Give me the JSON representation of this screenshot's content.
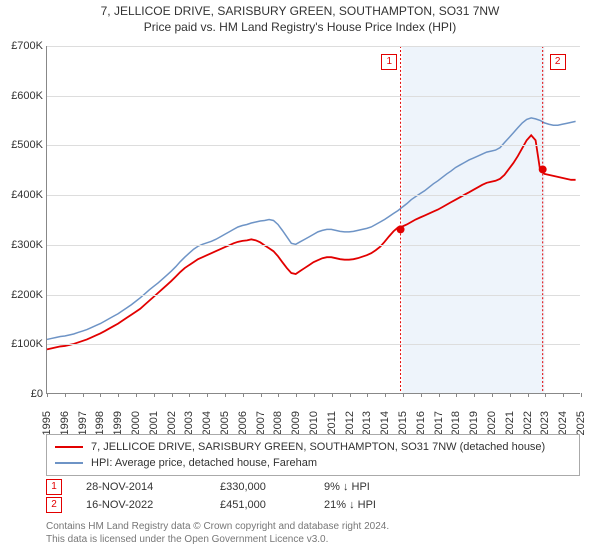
{
  "title_line1": "7, JELLICOE DRIVE, SARISBURY GREEN, SOUTHAMPTON, SO31 7NW",
  "title_line2": "Price paid vs. HM Land Registry's House Price Index (HPI)",
  "chart": {
    "type": "line",
    "background_color": "#ffffff",
    "grid_color": "#dddddd",
    "axis_color": "#888888",
    "years": [
      1995,
      1996,
      1997,
      1998,
      1999,
      2000,
      2001,
      2002,
      2003,
      2004,
      2005,
      2006,
      2007,
      2008,
      2009,
      2010,
      2011,
      2012,
      2013,
      2014,
      2015,
      2016,
      2017,
      2018,
      2019,
      2020,
      2021,
      2022,
      2023,
      2024,
      2025
    ],
    "y_ticks": [
      0,
      100,
      200,
      300,
      400,
      500,
      600,
      700
    ],
    "y_tick_labels": [
      "£0",
      "£100K",
      "£200K",
      "£300K",
      "£400K",
      "£500K",
      "£600K",
      "£700K"
    ],
    "ylim_max": 700,
    "series": [
      {
        "name": "hpi",
        "label": "HPI: Average price, detached house, Fareham",
        "color": "#6e94c6",
        "line_width": 1.5,
        "points_per_year": 4,
        "values": [
          108,
          110,
          112,
          114,
          115,
          117,
          119,
          122,
          125,
          128,
          132,
          136,
          140,
          145,
          150,
          155,
          160,
          166,
          172,
          178,
          185,
          192,
          200,
          208,
          215,
          222,
          230,
          238,
          246,
          255,
          265,
          274,
          282,
          290,
          296,
          300,
          303,
          306,
          310,
          315,
          320,
          325,
          330,
          335,
          338,
          340,
          343,
          345,
          347,
          348,
          350,
          348,
          340,
          328,
          315,
          302,
          300,
          305,
          310,
          315,
          320,
          325,
          328,
          330,
          330,
          328,
          326,
          325,
          325,
          326,
          328,
          330,
          332,
          335,
          340,
          345,
          350,
          356,
          362,
          368,
          375,
          382,
          390,
          396,
          402,
          408,
          415,
          422,
          428,
          435,
          442,
          448,
          455,
          460,
          465,
          470,
          474,
          478,
          482,
          486,
          488,
          490,
          495,
          505,
          515,
          525,
          535,
          545,
          552,
          555,
          553,
          550,
          545,
          542,
          540,
          540,
          542,
          544,
          546,
          548
        ]
      },
      {
        "name": "price_paid",
        "label": "7, JELLICOE DRIVE, SARISBURY GREEN, SOUTHAMPTON, SO31 7NW (detached house)",
        "color": "#e20000",
        "line_width": 1.8,
        "points_per_year": 4,
        "values": [
          88,
          90,
          92,
          94,
          95,
          97,
          99,
          102,
          105,
          108,
          112,
          116,
          120,
          125,
          130,
          135,
          140,
          146,
          152,
          158,
          164,
          170,
          178,
          186,
          194,
          202,
          210,
          218,
          226,
          235,
          244,
          252,
          258,
          264,
          270,
          274,
          278,
          282,
          286,
          290,
          294,
          298,
          302,
          305,
          307,
          308,
          310,
          308,
          304,
          298,
          292,
          286,
          276,
          264,
          252,
          242,
          240,
          246,
          252,
          258,
          264,
          268,
          272,
          274,
          274,
          272,
          270,
          269,
          269,
          270,
          272,
          275,
          278,
          282,
          288,
          295,
          305,
          316,
          326,
          334,
          336,
          340,
          345,
          350,
          354,
          358,
          362,
          366,
          370,
          375,
          380,
          385,
          390,
          395,
          400,
          405,
          410,
          415,
          420,
          424,
          426,
          428,
          432,
          440,
          452,
          464,
          478,
          494,
          510,
          520,
          510,
          450,
          442,
          440,
          438,
          436,
          434,
          432,
          430,
          430
        ]
      }
    ],
    "markers": [
      {
        "n": "1",
        "year_x": 2014.9,
        "value": 330,
        "color": "#e20000"
      },
      {
        "n": "2",
        "year_x": 2022.9,
        "value": 451,
        "color": "#e20000"
      }
    ],
    "shaded_region": {
      "year_start": 2015.0,
      "year_end": 2023.0,
      "fill": "#eef4fb"
    }
  },
  "legend": {
    "border_color": "#aaaaaa",
    "rows": [
      {
        "color": "#e20000",
        "label": "7, JELLICOE DRIVE, SARISBURY GREEN, SOUTHAMPTON, SO31 7NW (detached house)"
      },
      {
        "color": "#6e94c6",
        "label": "HPI: Average price, detached house, Fareham"
      }
    ]
  },
  "sales": [
    {
      "n": "1",
      "color": "#e20000",
      "date": "28-NOV-2014",
      "price": "£330,000",
      "pct": "9% ↓ HPI"
    },
    {
      "n": "2",
      "color": "#e20000",
      "date": "16-NOV-2022",
      "price": "£451,000",
      "pct": "21% ↓ HPI"
    }
  ],
  "footer": {
    "line1": "Contains HM Land Registry data © Crown copyright and database right 2024.",
    "line2": "This data is licensed under the Open Government Licence v3.0."
  }
}
